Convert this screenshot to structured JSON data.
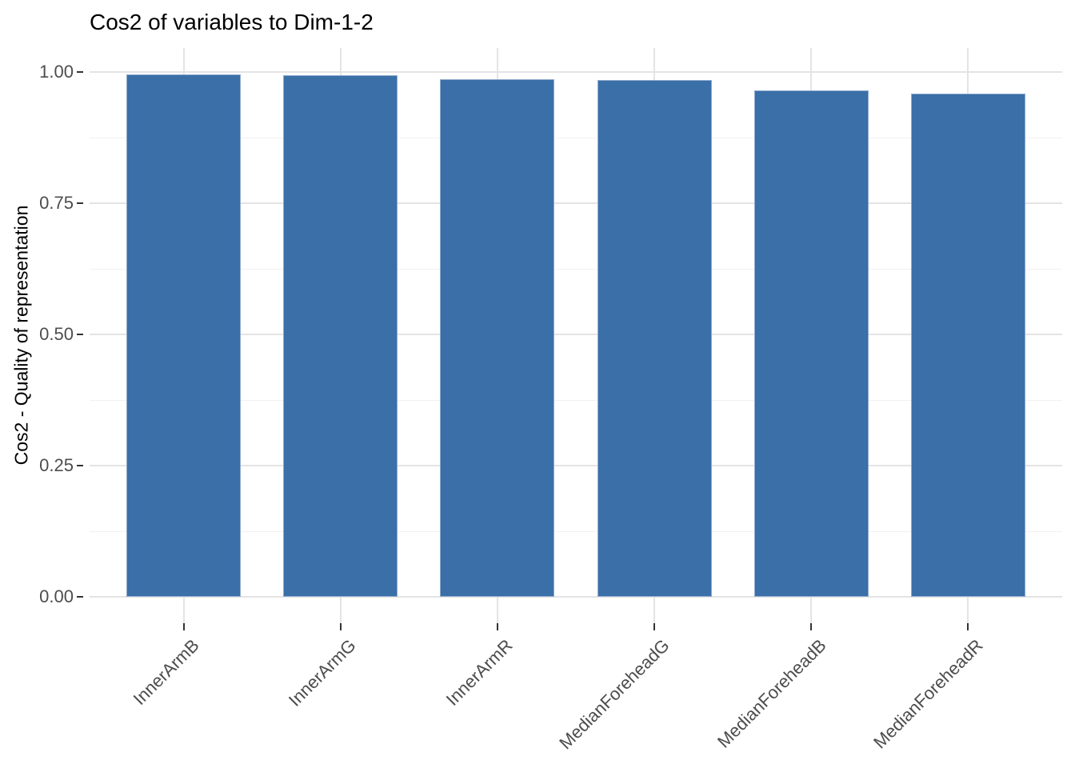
{
  "chart_data": {
    "type": "bar",
    "title": "Cos2 of variables to Dim-1-2",
    "xlabel": "",
    "ylabel": "Cos2 - Quality of representation",
    "categories": [
      "InnerArmB",
      "InnerArmG",
      "InnerArmR",
      "MedianForeheadG",
      "MedianForeheadB",
      "MedianForeheadR"
    ],
    "values": [
      0.995,
      0.994,
      0.987,
      0.985,
      0.965,
      0.959
    ],
    "ylim": [
      0,
      1.0
    ],
    "yticks": [
      0,
      0.25,
      0.5,
      0.75,
      1.0
    ],
    "ytick_labels": [
      "0.00",
      "0.25",
      "0.50",
      "0.75",
      "1.00"
    ],
    "minor_gridticks": [
      0.125,
      0.375,
      0.625,
      0.875
    ],
    "grid": "major-and-minor",
    "legend_position": "none",
    "x_tick_rotation_deg": 45,
    "colors": {
      "bar_fill": "#3a6fa8",
      "bar_border": "#8fabce",
      "grid_major": "#e4e4e4",
      "grid_minor": "#f1f1f1",
      "tick_label": "#4d4d4d",
      "tick_mark": "#333333",
      "background": "#ffffff"
    }
  }
}
